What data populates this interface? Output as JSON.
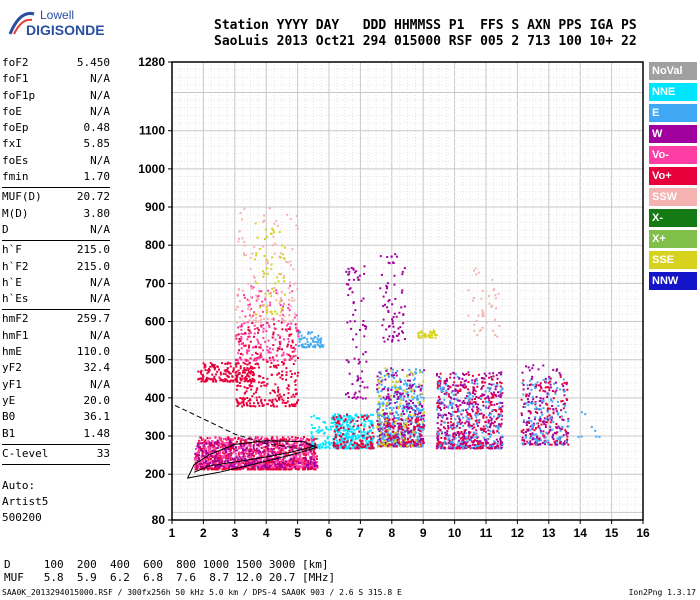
{
  "logo": {
    "line1": "Lowell",
    "line2": "DIGISONDE"
  },
  "header": {
    "labels": "Station YYYY DAY   DDD HHMMSS P1  FFS S AXN PPS IGA PS",
    "values": "SaoLuis 2013 Oct21 294 015000 RSF 005 2 713 100 10+ 22"
  },
  "params_group1": [
    {
      "key": "foF2",
      "value": "5.450"
    },
    {
      "key": "foF1",
      "value": "N/A"
    },
    {
      "key": "foF1p",
      "value": "N/A"
    },
    {
      "key": "foE",
      "value": "N/A"
    },
    {
      "key": "foEp",
      "value": "0.48"
    },
    {
      "key": "fxI",
      "value": "5.85"
    },
    {
      "key": "foEs",
      "value": "N/A"
    },
    {
      "key": "fmin",
      "value": "1.70"
    }
  ],
  "params_group2": [
    {
      "key": "MUF(D)",
      "value": "20.72"
    },
    {
      "key": "M(D)",
      "value": "3.80"
    },
    {
      "key": "D",
      "value": "N/A"
    }
  ],
  "params_group3": [
    {
      "key": "h`F",
      "value": "215.0"
    },
    {
      "key": "h`F2",
      "value": "215.0"
    },
    {
      "key": "h`E",
      "value": "N/A"
    },
    {
      "key": "h`Es",
      "value": "N/A"
    }
  ],
  "params_group4": [
    {
      "key": "hmF2",
      "value": "259.7"
    },
    {
      "key": "hmF1",
      "value": "N/A"
    },
    {
      "key": "hmE",
      "value": "110.0"
    },
    {
      "key": "yF2",
      "value": "32.4"
    },
    {
      "key": "yF1",
      "value": "N/A"
    },
    {
      "key": "yE",
      "value": "20.0"
    },
    {
      "key": "B0",
      "value": "36.1"
    },
    {
      "key": "B1",
      "value": "1.48"
    }
  ],
  "c_level": {
    "key": "C-level",
    "value": "33"
  },
  "auto": {
    "line1": "Auto:",
    "line2": "Artist5",
    "line3": "500200"
  },
  "bottom_table": {
    "d_row": "D     100  200  400  600  800 1000 1500 3000 [km]",
    "muf_row": "MUF   5.8  5.9  6.2  6.8  7.6  8.7 12.0 20.7 [MHz]"
  },
  "footer": {
    "left": "SAA0K_2013294015000.RSF / 300fx256h 50 kHz 5.0 km / DPS-4 SAA0K 903 / 2.6 S 315.8 E",
    "right": "Ion2Png 1.3.17"
  },
  "legend": [
    {
      "label": "NoVal",
      "color": "#a0a0a0",
      "text": "#ffffff"
    },
    {
      "label": "NNE",
      "color": "#00e5ff",
      "text": "#ffffff"
    },
    {
      "label": "E",
      "color": "#3fa9f5",
      "text": "#ffffff"
    },
    {
      "label": "W",
      "color": "#a0009e",
      "text": "#ffffff"
    },
    {
      "label": "Vo-",
      "color": "#ff3ea5",
      "text": "#ffffff"
    },
    {
      "label": "Vo+",
      "color": "#e8003d",
      "text": "#ffffff"
    },
    {
      "label": "SSW",
      "color": "#f4b2b0",
      "text": "#ffffff"
    },
    {
      "label": "X-",
      "color": "#137a14",
      "text": "#ffffff"
    },
    {
      "label": "X+",
      "color": "#7fbf4a",
      "text": "#ffffff"
    },
    {
      "label": "SSE",
      "color": "#d7d21e",
      "text": "#ffffff"
    },
    {
      "label": "NNW",
      "color": "#1414c8",
      "text": "#ffffff"
    }
  ],
  "chart_data": {
    "type": "scatter",
    "title": "",
    "xlabel": "",
    "ylabel": "",
    "xlim": [
      1,
      16
    ],
    "ylim": [
      80,
      1280
    ],
    "x_ticks": [
      1,
      2,
      3,
      4,
      5,
      6,
      7,
      8,
      9,
      10,
      11,
      12,
      13,
      14,
      15,
      16
    ],
    "y_ticks": [
      80,
      200,
      300,
      400,
      500,
      600,
      700,
      800,
      900,
      1000,
      1100,
      1280
    ],
    "grid": true,
    "clusters": [
      {
        "x": [
          1.7,
          5.6
        ],
        "y": [
          215,
          300
        ],
        "color": "#e8003d",
        "density": 900
      },
      {
        "x": [
          1.7,
          5.6
        ],
        "y": [
          220,
          300
        ],
        "color": "#ff3ea5",
        "density": 500
      },
      {
        "x": [
          1.7,
          5.6
        ],
        "y": [
          220,
          290
        ],
        "color": "#a0009e",
        "density": 250
      },
      {
        "x": [
          1.8,
          3.6
        ],
        "y": [
          445,
          495
        ],
        "color": "#e8003d",
        "density": 180
      },
      {
        "x": [
          3.0,
          5.0
        ],
        "y": [
          380,
          600
        ],
        "color": "#e8003d",
        "density": 300
      },
      {
        "x": [
          3.0,
          5.0
        ],
        "y": [
          500,
          700
        ],
        "color": "#ff3ea5",
        "density": 160
      },
      {
        "x": [
          3.0,
          5.0
        ],
        "y": [
          600,
          900
        ],
        "color": "#f4b2b0",
        "density": 120
      },
      {
        "x": [
          3.6,
          4.6
        ],
        "y": [
          620,
          860
        ],
        "color": "#d7d21e",
        "density": 60
      },
      {
        "x": [
          5.0,
          5.8
        ],
        "y": [
          535,
          575
        ],
        "color": "#3fa9f5",
        "density": 60
      },
      {
        "x": [
          5.4,
          6.8
        ],
        "y": [
          270,
          360
        ],
        "color": "#00e5ff",
        "density": 140
      },
      {
        "x": [
          6.1,
          7.4
        ],
        "y": [
          270,
          360
        ],
        "color": "#00e5ff",
        "density": 260
      },
      {
        "x": [
          6.1,
          7.4
        ],
        "y": [
          270,
          360
        ],
        "color": "#e8003d",
        "density": 120
      },
      {
        "x": [
          6.5,
          7.2
        ],
        "y": [
          400,
          750
        ],
        "color": "#a0009e",
        "density": 80
      },
      {
        "x": [
          7.5,
          9.0
        ],
        "y": [
          275,
          480
        ],
        "color": "#3fa9f5",
        "density": 450
      },
      {
        "x": [
          7.5,
          9.0
        ],
        "y": [
          275,
          480
        ],
        "color": "#a0009e",
        "density": 200
      },
      {
        "x": [
          7.5,
          9.0
        ],
        "y": [
          275,
          350
        ],
        "color": "#e8003d",
        "density": 120
      },
      {
        "x": [
          7.5,
          9.0
        ],
        "y": [
          275,
          480
        ],
        "color": "#d7d21e",
        "density": 100
      },
      {
        "x": [
          7.6,
          8.4
        ],
        "y": [
          550,
          780
        ],
        "color": "#a0009e",
        "density": 70
      },
      {
        "x": [
          8.8,
          9.4
        ],
        "y": [
          560,
          580
        ],
        "color": "#d7d21e",
        "density": 40
      },
      {
        "x": [
          9.4,
          11.5
        ],
        "y": [
          270,
          470
        ],
        "color": "#a0009e",
        "density": 380
      },
      {
        "x": [
          9.4,
          11.5
        ],
        "y": [
          270,
          470
        ],
        "color": "#e8003d",
        "density": 240
      },
      {
        "x": [
          9.4,
          11.5
        ],
        "y": [
          270,
          470
        ],
        "color": "#3fa9f5",
        "density": 160
      },
      {
        "x": [
          10.4,
          11.4
        ],
        "y": [
          560,
          750
        ],
        "color": "#f4b2b0",
        "density": 40
      },
      {
        "x": [
          12.1,
          13.6
        ],
        "y": [
          280,
          490
        ],
        "color": "#a0009e",
        "density": 180
      },
      {
        "x": [
          12.1,
          13.6
        ],
        "y": [
          280,
          460
        ],
        "color": "#e8003d",
        "density": 100
      },
      {
        "x": [
          12.1,
          13.6
        ],
        "y": [
          280,
          460
        ],
        "color": "#3fa9f5",
        "density": 100
      },
      {
        "x": [
          13.8,
          14.8
        ],
        "y": [
          300,
          420
        ],
        "color": "#3fa9f5",
        "density": 8
      }
    ]
  }
}
